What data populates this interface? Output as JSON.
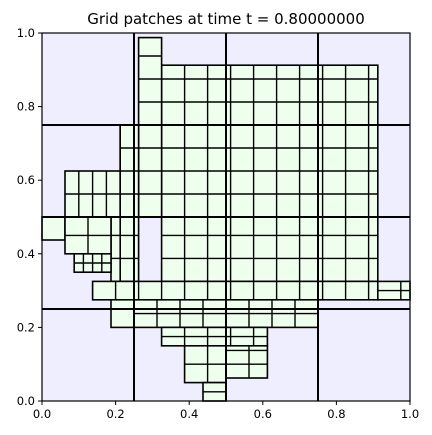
{
  "chart_data": {
    "type": "heatmap",
    "title": "Grid patches at time t =      0.80000000",
    "xlabel": "",
    "ylabel": "",
    "xlim": [
      0,
      1
    ],
    "ylim": [
      0,
      1
    ],
    "x_ticks": [
      "0.0",
      "0.2",
      "0.4",
      "0.6",
      "0.8",
      "1.0"
    ],
    "y_ticks": [
      "0.0",
      "0.2",
      "0.4",
      "0.6",
      "0.8",
      "1.0"
    ],
    "grid": false,
    "colors": {
      "coarse_fill": "#eeeeff",
      "fine_fill": "#eeffee",
      "edge": "#000000"
    },
    "coarse_lines_x": [
      0.25,
      0.5,
      0.75
    ],
    "coarse_lines_y": [
      0.25,
      0.5,
      0.75
    ],
    "fine_blocks": [
      {
        "x0": 0.325,
        "x1": 0.9125,
        "y0": 0.5,
        "y1": 0.9125,
        "dx": 0.0625,
        "dy": 0.0625
      },
      {
        "x0": 0.2625,
        "x1": 0.325,
        "y0": 0.5,
        "y1": 0.9875,
        "dx": 0.0625,
        "dy": 0.0625
      },
      {
        "x0": 0.325,
        "x1": 0.9125,
        "y0": 0.325,
        "y1": 0.5,
        "dx": 0.0625,
        "dy": 0.0625
      },
      {
        "x0": 0.2125,
        "x1": 0.2625,
        "y0": 0.325,
        "y1": 0.75,
        "dx": 0.05,
        "dy": 0.0625
      },
      {
        "x0": 0.1875,
        "x1": 0.2125,
        "y0": 0.325,
        "y1": 0.5,
        "dx": 0.025,
        "dy": 0.0625
      },
      {
        "x0": 0.0625,
        "x1": 0.2125,
        "y0": 0.5,
        "y1": 0.625,
        "dx": 0.0375,
        "dy": 0.0625
      },
      {
        "x0": 0.2125,
        "x1": 0.2625,
        "y0": 0.5,
        "y1": 0.75,
        "dx": 0.05,
        "dy": 0.0625
      },
      {
        "x0": 0.0,
        "x1": 0.0625,
        "y0": 0.4375,
        "y1": 0.5,
        "dx": 0.0625,
        "dy": 0.0625
      },
      {
        "x0": 0.0625,
        "x1": 0.1875,
        "y0": 0.4,
        "y1": 0.5,
        "dx": 0.0625,
        "dy": 0.05
      },
      {
        "x0": 0.0875,
        "x1": 0.1875,
        "y0": 0.35,
        "y1": 0.4,
        "dx": 0.025,
        "dy": 0.025
      },
      {
        "x0": 0.1375,
        "x1": 0.9125,
        "y0": 0.275,
        "y1": 0.325,
        "dx": 0.0625,
        "dy": 0.05
      },
      {
        "x0": 0.1875,
        "x1": 0.25,
        "y0": 0.2,
        "y1": 0.275,
        "dx": 0.0625,
        "dy": 0.075
      },
      {
        "x0": 0.25,
        "x1": 0.75,
        "y0": 0.2,
        "y1": 0.275,
        "dx": 0.0625,
        "dy": 0.0375
      },
      {
        "x0": 0.325,
        "x1": 0.6125,
        "y0": 0.15,
        "y1": 0.2,
        "dx": 0.0625,
        "dy": 0.025
      },
      {
        "x0": 0.3875,
        "x1": 0.5,
        "y0": 0.05,
        "y1": 0.15,
        "dx": 0.0625,
        "dy": 0.05
      },
      {
        "x0": 0.5,
        "x1": 0.6125,
        "y0": 0.0625,
        "y1": 0.15,
        "dx": 0.0625,
        "dy": 0.0375
      },
      {
        "x0": 0.4375,
        "x1": 0.5,
        "y0": 0.0,
        "y1": 0.05,
        "dx": 0.0625,
        "dy": 0.025
      },
      {
        "x0": 0.9125,
        "x1": 1.0,
        "y0": 0.275,
        "y1": 0.325,
        "dx": 0.0625,
        "dy": 0.025
      }
    ]
  }
}
